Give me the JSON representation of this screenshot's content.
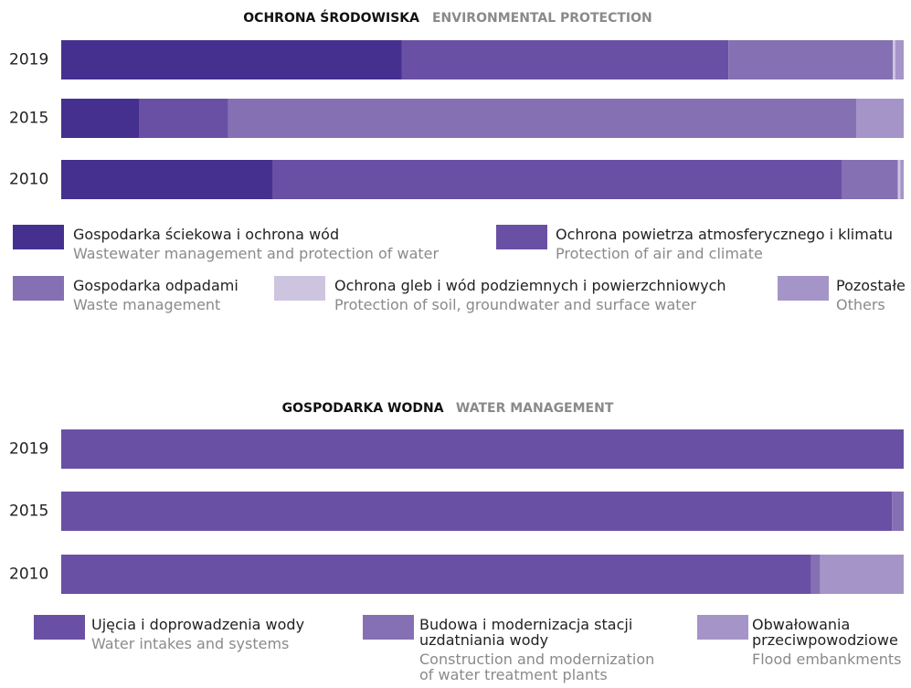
{
  "chart_data": [
    {
      "type": "stacked_bar_horizontal",
      "title": "OCHRONA ŚRODOWISKA",
      "subtitle": "ENVIRONMENTAL PROTECTION",
      "categories": [
        "2019",
        "2015",
        "2010"
      ],
      "xlim": [
        0,
        100
      ],
      "series": [
        {
          "name": "Gospodarka ściekowa i ochrona wód",
          "name_en": "Wastewater management and protection of water",
          "color": "#46308f",
          "values": [
            40.4,
            9.3,
            25.1
          ]
        },
        {
          "name": "Ochrona powietrza atmosferycznego i klimatu",
          "name_en": "Protection of air and climate",
          "color": "#6a50a4",
          "values": [
            38.8,
            10.5,
            67.6
          ]
        },
        {
          "name": "Gospodarka odpadami",
          "name_en": "Waste management",
          "color": "#8670b4",
          "values": [
            19.5,
            74.6,
            6.6
          ]
        },
        {
          "name": "Ochrona gleb i wód podziemnych i powierzchniowych",
          "name_en": "Protection of soil, groundwater and surface water",
          "color": "#cdc5e0",
          "values": [
            0.3,
            0,
            0.3
          ]
        },
        {
          "name": "Pozostałe",
          "name_en": "Others",
          "color": "#a594c8",
          "values": [
            1.0,
            5.6,
            0.4
          ]
        }
      ]
    },
    {
      "type": "stacked_bar_horizontal",
      "title": "GOSPODARKA WODNA",
      "subtitle": "WATER MANAGEMENT",
      "categories": [
        "2019",
        "2015",
        "2010"
      ],
      "xlim": [
        0,
        100
      ],
      "series": [
        {
          "name": "Ujęcia i doprowadzenia wody",
          "name_en": "Water intakes and systems",
          "color": "#6a50a4",
          "values": [
            100,
            98.6,
            89.0
          ]
        },
        {
          "name": "Budowa i modernizacja stacji uzdatniania wody",
          "name_en": "Construction and modernization of water treatment plants",
          "color": "#8670b4",
          "values": [
            0,
            1.4,
            1.1
          ]
        },
        {
          "name": "Obwałowania przeciwpowodziowe",
          "name_en": "Flood embankments",
          "color": "#a594c8",
          "values": [
            0,
            0,
            9.9
          ]
        }
      ]
    }
  ]
}
